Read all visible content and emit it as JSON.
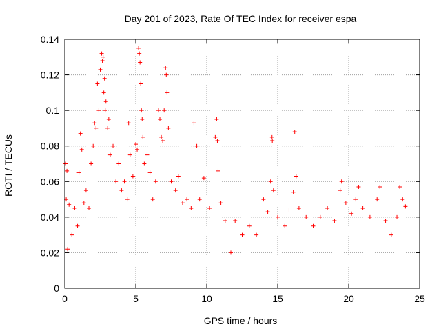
{
  "chart_data": {
    "type": "scatter",
    "title": "Day 201 of 2023, Rate Of TEC Index for receiver espa",
    "xlabel": "GPS time / hours",
    "ylabel": "ROTI / TECUs",
    "xlim": [
      0,
      25
    ],
    "ylim": [
      0,
      0.14
    ],
    "xticks": [
      0,
      5,
      10,
      15,
      20,
      25
    ],
    "xtick_labels": [
      "0",
      "5",
      "10",
      "15",
      "20",
      "25"
    ],
    "yticks": [
      0,
      0.02,
      0.04,
      0.06,
      0.08,
      0.1,
      0.12,
      0.14
    ],
    "ytick_labels": [
      "0",
      "0.02",
      "0.04",
      "0.06",
      "0.08",
      "0.1",
      "0.12",
      "0.14"
    ],
    "grid": true,
    "marker": "+",
    "color": "#ff0000",
    "series": [
      {
        "values": [
          [
            0.05,
            0.07
          ],
          [
            0.1,
            0.05
          ],
          [
            0.15,
            0.066
          ],
          [
            0.2,
            0.022
          ],
          [
            0.3,
            0.047
          ],
          [
            0.5,
            0.03
          ],
          [
            0.7,
            0.045
          ],
          [
            0.9,
            0.035
          ],
          [
            1.0,
            0.065
          ],
          [
            1.1,
            0.087
          ],
          [
            1.2,
            0.078
          ],
          [
            1.35,
            0.048
          ],
          [
            1.5,
            0.055
          ],
          [
            1.7,
            0.045
          ],
          [
            1.85,
            0.07
          ],
          [
            2.0,
            0.08
          ],
          [
            2.1,
            0.093
          ],
          [
            2.2,
            0.09
          ],
          [
            2.3,
            0.115
          ],
          [
            2.4,
            0.1
          ],
          [
            2.5,
            0.123
          ],
          [
            2.6,
            0.132
          ],
          [
            2.65,
            0.128
          ],
          [
            2.7,
            0.13
          ],
          [
            2.75,
            0.11
          ],
          [
            2.8,
            0.118
          ],
          [
            2.85,
            0.1
          ],
          [
            2.9,
            0.105
          ],
          [
            3.0,
            0.09
          ],
          [
            3.1,
            0.095
          ],
          [
            3.2,
            0.075
          ],
          [
            3.4,
            0.08
          ],
          [
            3.6,
            0.06
          ],
          [
            3.8,
            0.07
          ],
          [
            4.0,
            0.055
          ],
          [
            4.2,
            0.06
          ],
          [
            4.4,
            0.05
          ],
          [
            4.5,
            0.093
          ],
          [
            4.6,
            0.075
          ],
          [
            4.8,
            0.063
          ],
          [
            5.0,
            0.081
          ],
          [
            5.1,
            0.078
          ],
          [
            5.2,
            0.135
          ],
          [
            5.25,
            0.132
          ],
          [
            5.3,
            0.127
          ],
          [
            5.35,
            0.115
          ],
          [
            5.4,
            0.1
          ],
          [
            5.45,
            0.095
          ],
          [
            5.5,
            0.085
          ],
          [
            5.6,
            0.07
          ],
          [
            5.8,
            0.075
          ],
          [
            6.0,
            0.065
          ],
          [
            6.2,
            0.05
          ],
          [
            6.4,
            0.06
          ],
          [
            6.6,
            0.1
          ],
          [
            6.7,
            0.095
          ],
          [
            6.8,
            0.085
          ],
          [
            6.9,
            0.083
          ],
          [
            7.0,
            0.1
          ],
          [
            7.1,
            0.124
          ],
          [
            7.15,
            0.12
          ],
          [
            7.2,
            0.11
          ],
          [
            7.3,
            0.09
          ],
          [
            7.5,
            0.06
          ],
          [
            7.8,
            0.055
          ],
          [
            8.0,
            0.063
          ],
          [
            8.3,
            0.048
          ],
          [
            8.6,
            0.05
          ],
          [
            8.9,
            0.045
          ],
          [
            9.1,
            0.093
          ],
          [
            9.3,
            0.08
          ],
          [
            9.5,
            0.05
          ],
          [
            9.8,
            0.062
          ],
          [
            10.2,
            0.045
          ],
          [
            10.6,
            0.085
          ],
          [
            10.7,
            0.095
          ],
          [
            10.75,
            0.083
          ],
          [
            10.8,
            0.066
          ],
          [
            11.0,
            0.048
          ],
          [
            11.3,
            0.038
          ],
          [
            11.7,
            0.02
          ],
          [
            12.0,
            0.038
          ],
          [
            12.5,
            0.03
          ],
          [
            13.0,
            0.035
          ],
          [
            13.5,
            0.03
          ],
          [
            14.0,
            0.05
          ],
          [
            14.3,
            0.043
          ],
          [
            14.5,
            0.06
          ],
          [
            14.6,
            0.085
          ],
          [
            14.62,
            0.083
          ],
          [
            14.7,
            0.055
          ],
          [
            15.0,
            0.04
          ],
          [
            15.5,
            0.035
          ],
          [
            15.8,
            0.044
          ],
          [
            16.1,
            0.054
          ],
          [
            16.2,
            0.088
          ],
          [
            16.3,
            0.063
          ],
          [
            16.5,
            0.045
          ],
          [
            17.0,
            0.04
          ],
          [
            17.5,
            0.035
          ],
          [
            18.0,
            0.04
          ],
          [
            18.5,
            0.045
          ],
          [
            19.0,
            0.038
          ],
          [
            19.4,
            0.055
          ],
          [
            19.5,
            0.06
          ],
          [
            19.8,
            0.048
          ],
          [
            20.2,
            0.042
          ],
          [
            20.5,
            0.05
          ],
          [
            20.7,
            0.057
          ],
          [
            21.0,
            0.045
          ],
          [
            21.5,
            0.04
          ],
          [
            22.0,
            0.05
          ],
          [
            22.2,
            0.057
          ],
          [
            22.6,
            0.038
          ],
          [
            23.0,
            0.03
          ],
          [
            23.4,
            0.04
          ],
          [
            23.6,
            0.057
          ],
          [
            23.8,
            0.05
          ],
          [
            24.0,
            0.046
          ]
        ]
      }
    ]
  }
}
